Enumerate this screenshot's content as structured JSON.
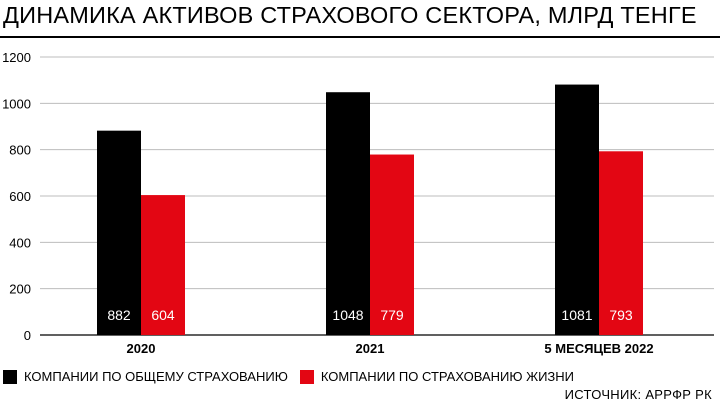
{
  "chart_data": {
    "type": "bar",
    "title": "ДИНАМИКА АКТИВОВ СТРАХОВОГО СЕКТОРА, МЛРД ТЕНГЕ",
    "categories": [
      "2020",
      "2021",
      "5 МЕСЯЦЕВ 2022"
    ],
    "series": [
      {
        "name": "КОМПАНИИ ПО ОБЩЕМУ СТРАХОВАНИЮ",
        "color": "#000000",
        "label_color": "#ffffff",
        "values": [
          882,
          1048,
          1081
        ]
      },
      {
        "name": "КОМПАНИИ ПО СТРАХОВАНИЮ ЖИЗНИ",
        "color": "#e30613",
        "label_color": "#ffffff",
        "values": [
          604,
          779,
          793
        ]
      }
    ],
    "yticks": [
      0,
      200,
      400,
      600,
      800,
      1000,
      1200
    ],
    "ylim": [
      0,
      1200
    ],
    "grid": true,
    "legend": "bottom-left",
    "source": "ИСТОЧНИК: АРРФР РК"
  }
}
